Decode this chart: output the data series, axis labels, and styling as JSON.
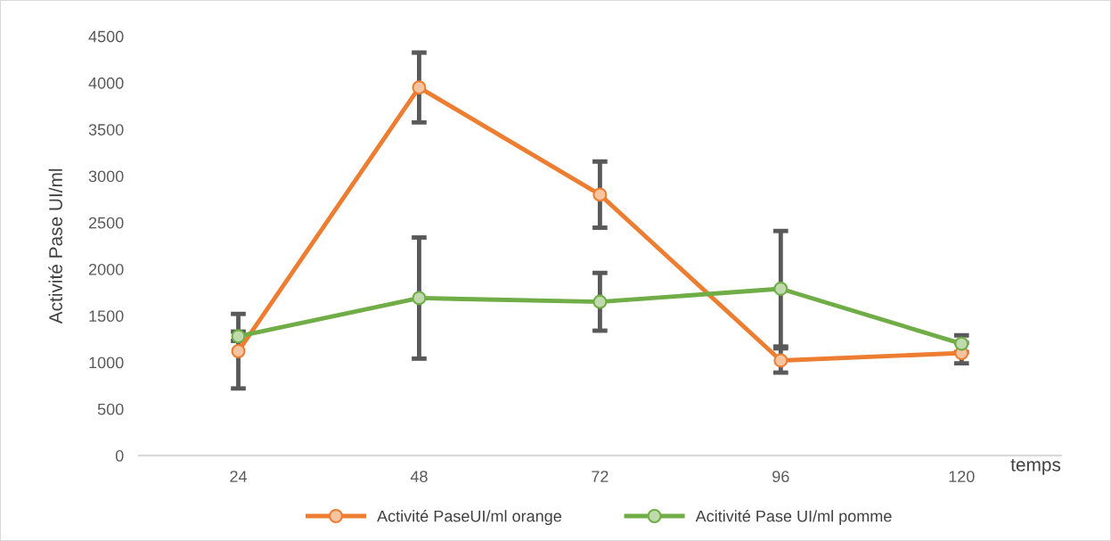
{
  "chart_data": {
    "type": "line",
    "xlabel": "temps",
    "ylabel": "Activité Pase UI/ml",
    "categories": [
      "24",
      "48",
      "72",
      "96",
      "120"
    ],
    "series": [
      {
        "name": "Activité PaseUI/ml orange",
        "color": "#ed7d31",
        "values": [
          1120,
          3950,
          2800,
          1020,
          1100
        ],
        "errors": [
          400,
          375,
          355,
          130,
          110
        ]
      },
      {
        "name": "Acitivité Pase UI/ml pomme",
        "color": "#70ad47",
        "values": [
          1280,
          1690,
          1650,
          1790,
          1200
        ],
        "errors": [
          50,
          650,
          310,
          620,
          90
        ]
      }
    ],
    "ylim": [
      0,
      4500
    ],
    "yticks": [
      0,
      500,
      1000,
      1500,
      2000,
      2500,
      3000,
      3500,
      4000,
      4500
    ],
    "marker": "circle",
    "line_style": "solid",
    "grid": false,
    "legend": "bottom"
  }
}
